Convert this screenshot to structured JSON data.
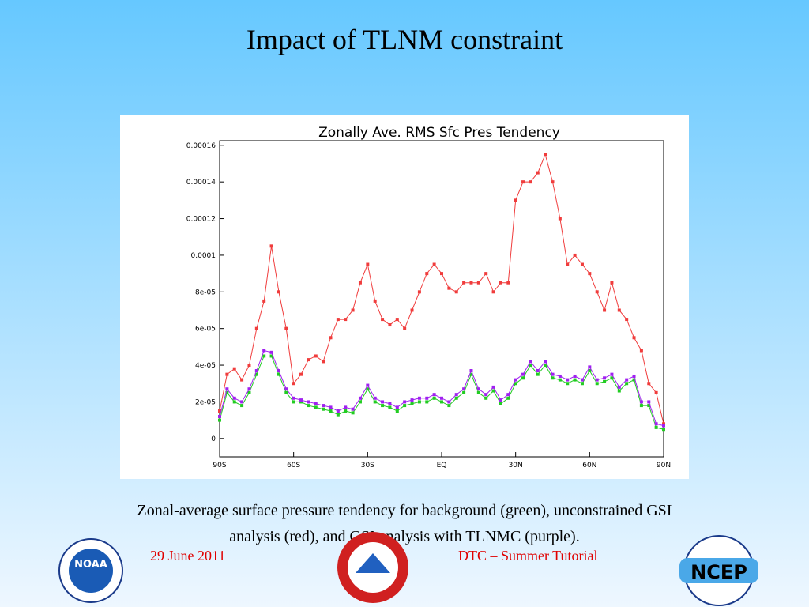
{
  "slide": {
    "title": "Impact of TLNM constraint",
    "caption": [
      "Zonal-average surface pressure tendency for background (green), unconstrained GSI",
      "analysis (red), and GSI analysis with TLNMC (purple)."
    ],
    "date": "29 June 2011",
    "footer": "DTC – Summer Tutorial",
    "logo_left": "NOAA",
    "logo_right": "NCEP"
  },
  "chart_data": {
    "type": "line",
    "title": "Zonally Ave. RMS Sfc Pres Tendency",
    "x": [
      -90,
      -87,
      -84,
      -81,
      -78,
      -75,
      -72,
      -69,
      -66,
      -63,
      -60,
      -57,
      -54,
      -51,
      -48,
      -45,
      -42,
      -39,
      -36,
      -33,
      -30,
      -27,
      -24,
      -21,
      -18,
      -15,
      -12,
      -9,
      -6,
      -3,
      0,
      3,
      6,
      9,
      12,
      15,
      18,
      21,
      24,
      27,
      30,
      33,
      36,
      39,
      42,
      45,
      48,
      51,
      54,
      57,
      60,
      63,
      66,
      69,
      72,
      75,
      78,
      81,
      84,
      87,
      90
    ],
    "series": [
      {
        "color": "#f03c3c",
        "values": [
          1.5e-05,
          3.5e-05,
          3.8e-05,
          3.2e-05,
          4e-05,
          6e-05,
          7.5e-05,
          0.000105,
          8e-05,
          6e-05,
          3e-05,
          3.5e-05,
          4.3e-05,
          4.5e-05,
          4.2e-05,
          5.5e-05,
          6.5e-05,
          6.5e-05,
          7e-05,
          8.5e-05,
          9.5e-05,
          7.5e-05,
          6.5e-05,
          6.2e-05,
          6.5e-05,
          6e-05,
          7e-05,
          8e-05,
          9e-05,
          9.5e-05,
          9e-05,
          8.2e-05,
          8e-05,
          8.5e-05,
          8.5e-05,
          8.5e-05,
          9e-05,
          8e-05,
          8.5e-05,
          8.5e-05,
          0.00013,
          0.00014,
          0.00014,
          0.000145,
          0.000155,
          0.00014,
          0.00012,
          9.5e-05,
          0.0001,
          9.5e-05,
          9e-05,
          8e-05,
          7e-05,
          8.5e-05,
          7e-05,
          6.5e-05,
          5.5e-05,
          4.8e-05,
          3e-05,
          2.5e-05,
          8e-06
        ]
      },
      {
        "color": "#22cc22",
        "values": [
          1e-05,
          2.5e-05,
          2e-05,
          1.8e-05,
          2.5e-05,
          3.5e-05,
          4.5e-05,
          4.5e-05,
          3.5e-05,
          2.5e-05,
          2e-05,
          2e-05,
          1.8e-05,
          1.7e-05,
          1.6e-05,
          1.5e-05,
          1.3e-05,
          1.5e-05,
          1.4e-05,
          2e-05,
          2.7e-05,
          2e-05,
          1.8e-05,
          1.7e-05,
          1.5e-05,
          1.8e-05,
          1.9e-05,
          2e-05,
          2e-05,
          2.2e-05,
          2e-05,
          1.8e-05,
          2.2e-05,
          2.5e-05,
          3.5e-05,
          2.5e-05,
          2.2e-05,
          2.6e-05,
          1.9e-05,
          2.2e-05,
          3e-05,
          3.3e-05,
          4e-05,
          3.5e-05,
          4e-05,
          3.3e-05,
          3.2e-05,
          3e-05,
          3.2e-05,
          3e-05,
          3.7e-05,
          3e-05,
          3.1e-05,
          3.3e-05,
          2.6e-05,
          3e-05,
          3.2e-05,
          1.8e-05,
          1.8e-05,
          6e-06,
          5e-06
        ]
      },
      {
        "color": "#a020f0",
        "values": [
          1.2e-05,
          2.7e-05,
          2.2e-05,
          2e-05,
          2.7e-05,
          3.7e-05,
          4.8e-05,
          4.7e-05,
          3.7e-05,
          2.7e-05,
          2.2e-05,
          2.1e-05,
          2e-05,
          1.9e-05,
          1.8e-05,
          1.7e-05,
          1.5e-05,
          1.7e-05,
          1.6e-05,
          2.2e-05,
          2.9e-05,
          2.2e-05,
          2e-05,
          1.9e-05,
          1.7e-05,
          2e-05,
          2.1e-05,
          2.2e-05,
          2.2e-05,
          2.4e-05,
          2.2e-05,
          2e-05,
          2.4e-05,
          2.7e-05,
          3.7e-05,
          2.7e-05,
          2.4e-05,
          2.8e-05,
          2.1e-05,
          2.4e-05,
          3.2e-05,
          3.5e-05,
          4.2e-05,
          3.7e-05,
          4.2e-05,
          3.5e-05,
          3.4e-05,
          3.2e-05,
          3.4e-05,
          3.2e-05,
          3.9e-05,
          3.2e-05,
          3.3e-05,
          3.5e-05,
          2.8e-05,
          3.2e-05,
          3.4e-05,
          2e-05,
          2e-05,
          8e-06,
          7e-06
        ]
      }
    ],
    "xlim": [
      -90,
      90
    ],
    "xticks": [
      {
        "value": -90,
        "label": "90S"
      },
      {
        "value": -60,
        "label": "60S"
      },
      {
        "value": -30,
        "label": "30S"
      },
      {
        "value": 0,
        "label": "EQ"
      },
      {
        "value": 30,
        "label": "30N"
      },
      {
        "value": 60,
        "label": "60N"
      },
      {
        "value": 90,
        "label": "90N"
      }
    ],
    "ylim": [
      -1e-05,
      0.0001625
    ],
    "yticks": [
      0,
      {
        "value": 2e-05,
        "label": "2e-05"
      },
      {
        "value": 4e-05,
        "label": "4e-05"
      },
      {
        "value": 6e-05,
        "label": "6e-05"
      },
      {
        "value": 8e-05,
        "label": "8e-05"
      },
      0.0001,
      0.00012,
      0.00014,
      0.00016
    ]
  }
}
